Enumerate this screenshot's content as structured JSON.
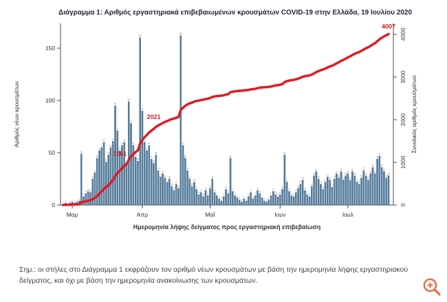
{
  "title": "Διάγραμμα 1: Αριθμός εργαστηριακά επιβεβαιωμένων κρουσμάτων COVID-19 στην Ελλάδα, 19 Ιουλίου 2020",
  "note": "Σημ.: οι στήλες στο Διάγραμμα 1 εκφράζουν τον αριθμό νέων κρουσμάτων με βάση την ημερομηνία λήψης εργαστηριακού δείγματος, και όχι με βάση την ημερομηνία ανακοίνωσης των κρουσμάτων.",
  "icons": {
    "zoom": "magnifier-plus-icon"
  },
  "colors": {
    "bar": "#527d9f",
    "bar_edge": "#3a5a78",
    "line": "#e01b24",
    "annotation": "#cf1b22",
    "axis": "#4a4a4a",
    "tick_text": "#2b2b2b",
    "bar_label": "#8f8f8f",
    "title": "#1e2433",
    "zoom_icon": "#e8562e"
  },
  "chart_data": {
    "type": "bar+line",
    "title": "Διάγραμμα 1: Αριθμός εργαστηριακά επιβεβαιωμένων κρουσμάτων COVID-19 στην Ελλάδα, 19 Ιουλίου 2020",
    "xlabel": "Ημερομηνία λήψης δείγματος προς εργαστηριακή επιβεβαίωση",
    "ylabel_left": "Αριθμός νέων κρουσμάτων",
    "ylabel_right": "Συνολικός αριθμός κρουσμάτων",
    "x_tick_labels": [
      "Μαρ",
      "Απρ",
      "Μαΐ",
      "Ιουν",
      "Ιουλ"
    ],
    "y_left_ticks": [
      0,
      50,
      100,
      150
    ],
    "y_right_ticks": [
      0,
      1000,
      2000,
      3000,
      4000
    ],
    "ylim_left": [
      0,
      165
    ],
    "ylim_right": [
      0,
      4100
    ],
    "grid": false,
    "legend": "none",
    "month_tick_day_indices": [
      4,
      35,
      65,
      96,
      126
    ],
    "daily_new_cases": [
      1,
      2,
      1,
      2,
      3,
      2,
      3,
      4,
      49,
      8,
      11,
      13,
      12,
      25,
      31,
      45,
      52,
      55,
      60,
      41,
      48,
      55,
      61,
      95,
      71,
      52,
      57,
      60,
      39,
      99,
      78,
      57,
      46,
      42,
      160,
      90,
      60,
      52,
      57,
      44,
      40,
      48,
      33,
      27,
      30,
      26,
      22,
      25,
      18,
      14,
      20,
      16,
      162,
      57,
      45,
      33,
      25,
      18,
      22,
      15,
      10,
      12,
      8,
      14,
      9,
      16,
      25,
      12,
      9,
      6,
      4,
      8,
      15,
      11,
      45,
      13,
      9,
      7,
      5,
      3,
      6,
      4,
      8,
      12,
      6,
      9,
      14,
      11,
      7,
      4,
      3,
      5,
      9,
      13,
      10,
      8,
      10,
      15,
      48,
      22,
      13,
      9,
      8,
      12,
      16,
      20,
      24,
      14,
      10,
      8,
      18,
      28,
      32,
      25,
      20,
      15,
      22,
      27,
      24,
      17,
      25,
      30,
      26,
      32,
      24,
      28,
      30,
      24,
      32,
      28,
      22,
      20,
      26,
      33,
      28,
      24,
      30,
      36,
      30,
      44,
      47,
      36,
      32,
      26,
      28
    ],
    "cumulative_note": "red line = running total of daily_new_cases, final value 4007",
    "annotations": [
      {
        "text": "1061",
        "day_index": 29
      },
      {
        "text": "2021",
        "day_index": 44
      },
      {
        "text": "4007",
        "day_index": 144
      }
    ]
  }
}
